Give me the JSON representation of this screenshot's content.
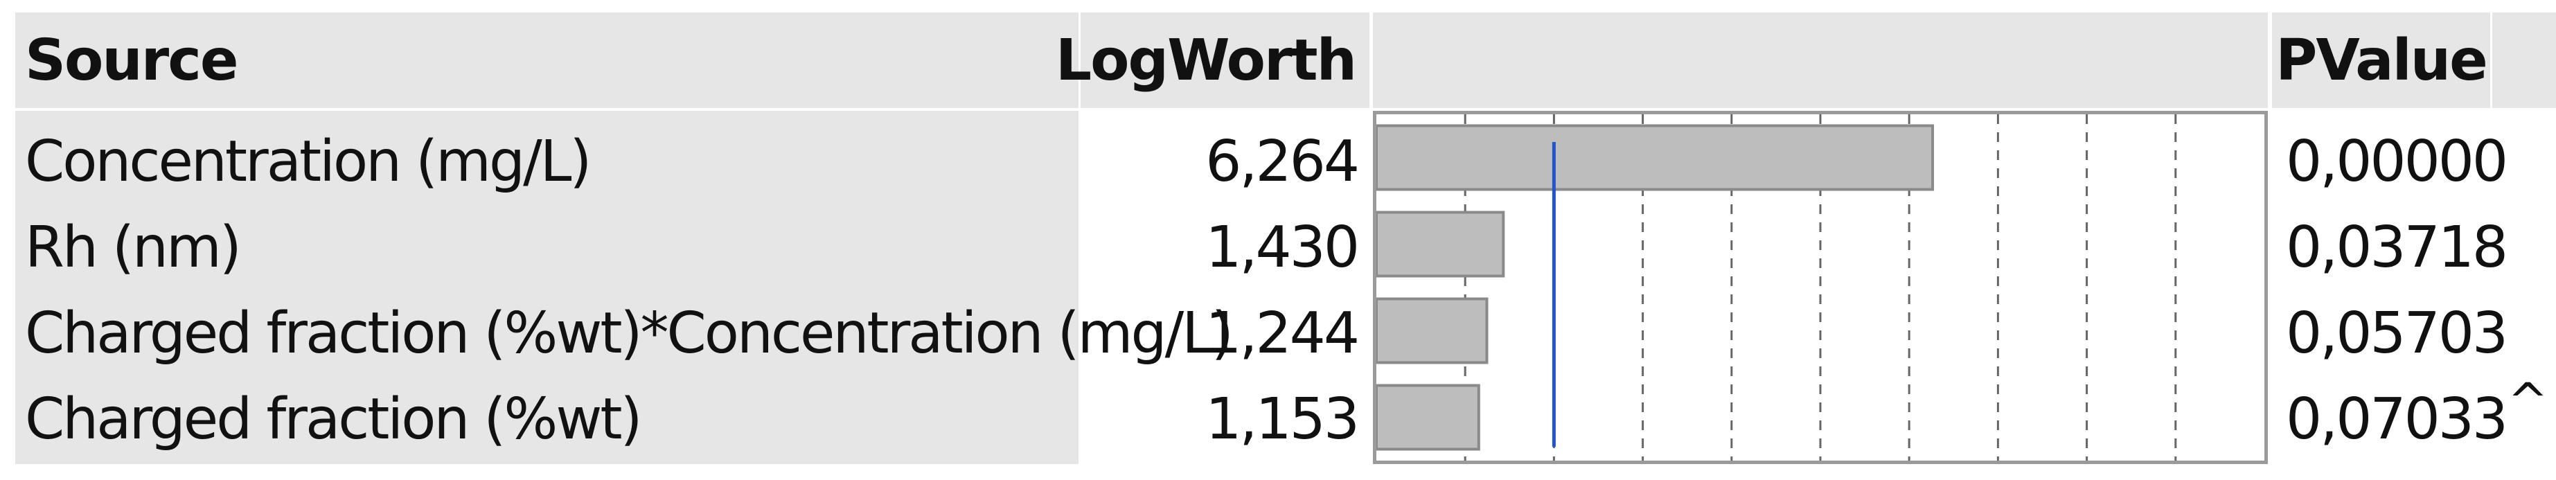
{
  "table": {
    "headers": {
      "source": "Source",
      "logworth": "LogWorth",
      "pvalue": "PValue"
    },
    "rows": [
      {
        "source": "Concentration (mg/L)",
        "logworth": "6,264",
        "pvalue": "0,00000",
        "flag": ""
      },
      {
        "source": "Rh (nm)",
        "logworth": "1,430",
        "pvalue": "0,03718",
        "flag": ""
      },
      {
        "source": "Charged fraction (%wt)*Concentration (mg/L)",
        "logworth": "1,244",
        "pvalue": "0,05703",
        "flag": ""
      },
      {
        "source": "Charged fraction (%wt)",
        "logworth": "1,153",
        "pvalue": "0,07033",
        "flag": "^"
      }
    ]
  },
  "chart_data": {
    "type": "bar",
    "orientation": "horizontal",
    "categories": [
      "Concentration (mg/L)",
      "Rh (nm)",
      "Charged fraction (%wt)*Concentration (mg/L)",
      "Charged fraction (%wt)"
    ],
    "values": [
      6.264,
      1.43,
      1.244,
      1.153
    ],
    "xlim": [
      0,
      10
    ],
    "reference_line": 2,
    "gridlines": [
      1,
      2,
      3,
      4,
      5,
      6,
      7,
      8,
      9
    ],
    "colors": {
      "bar": "#bdbdbd",
      "bar_edge": "#8a8a8a",
      "reference_line": "#2255cc",
      "grid": "#666666"
    }
  }
}
